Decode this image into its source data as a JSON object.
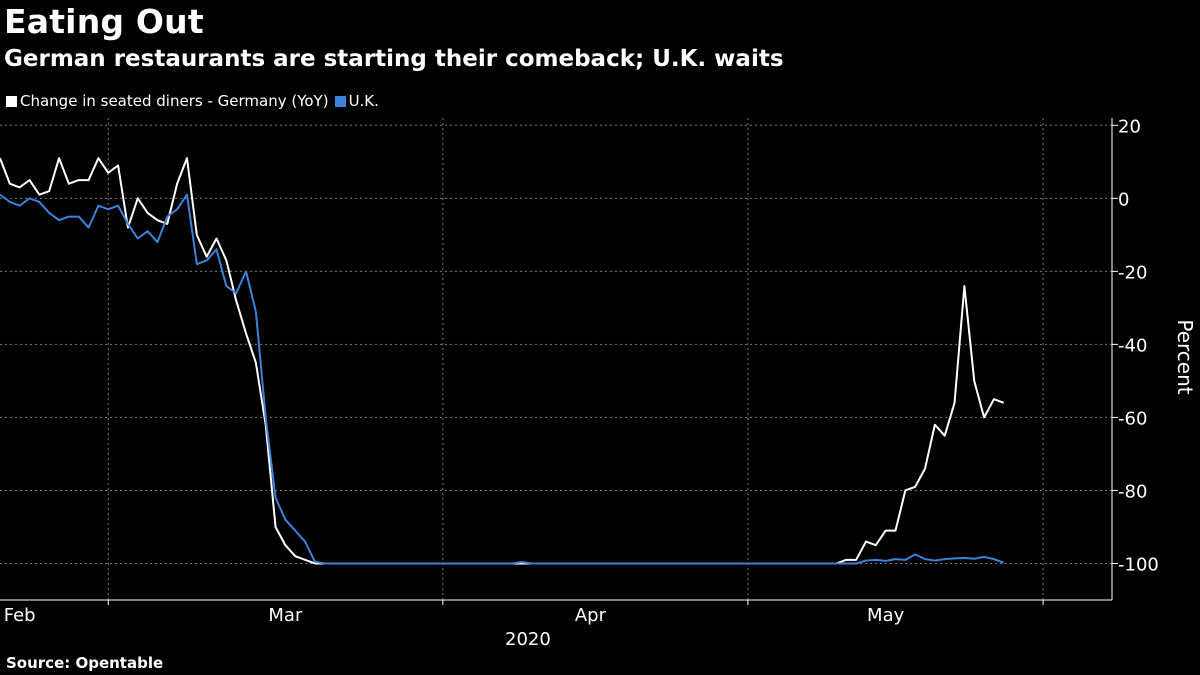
{
  "header": {
    "title": "Eating Out",
    "subtitle": "German restaurants are starting their comeback; U.K. waits"
  },
  "legend": [
    {
      "label": "Change in seated diners - Germany (YoY)",
      "color": "#ffffff"
    },
    {
      "label": "U.K.",
      "color": "#3b82d9"
    }
  ],
  "footer": {
    "source": "Source: Opentable"
  },
  "chart_data": {
    "type": "line",
    "title": "Eating Out",
    "subtitle": "German restaurants are starting their comeback; U.K. waits",
    "ylabel": "Percent",
    "ylim": [
      -110,
      22
    ],
    "yticks": [
      20,
      0,
      -20,
      -40,
      -60,
      -80,
      -100
    ],
    "ytick_labels": [
      "20",
      "0",
      "-20",
      "-40",
      "-60",
      "-80",
      "-100"
    ],
    "y_axis_position": "right",
    "xlim": [
      "2020-02-01",
      "2020-05-24"
    ],
    "month_labels": [
      {
        "label": "Feb",
        "date": "2020-02-03"
      },
      {
        "label": "Mar",
        "date": "2020-03-01"
      },
      {
        "label": "Apr",
        "date": "2020-04-01"
      },
      {
        "label": "May",
        "date": "2020-05-01"
      }
    ],
    "year_label": "2020",
    "gridlines": "dashed",
    "vertical_grid_dates": [
      "2020-02-12",
      "2020-03-17",
      "2020-04-17",
      "2020-05-17"
    ],
    "series": [
      {
        "name": "Change in seated diners - Germany (YoY)",
        "color": "#ffffff",
        "points": [
          [
            "2020-02-01",
            11
          ],
          [
            "2020-02-02",
            4
          ],
          [
            "2020-02-03",
            3
          ],
          [
            "2020-02-04",
            5
          ],
          [
            "2020-02-05",
            1
          ],
          [
            "2020-02-06",
            2
          ],
          [
            "2020-02-07",
            11
          ],
          [
            "2020-02-08",
            4
          ],
          [
            "2020-02-09",
            5
          ],
          [
            "2020-02-10",
            5
          ],
          [
            "2020-02-11",
            11
          ],
          [
            "2020-02-12",
            7
          ],
          [
            "2020-02-13",
            9
          ],
          [
            "2020-02-14",
            -8
          ],
          [
            "2020-02-15",
            0
          ],
          [
            "2020-02-16",
            -4
          ],
          [
            "2020-02-17",
            -6
          ],
          [
            "2020-02-18",
            -7
          ],
          [
            "2020-02-19",
            4
          ],
          [
            "2020-02-20",
            11
          ],
          [
            "2020-02-21",
            -10
          ],
          [
            "2020-02-22",
            -16
          ],
          [
            "2020-02-23",
            -11
          ],
          [
            "2020-02-24",
            -17
          ],
          [
            "2020-02-25",
            -28
          ],
          [
            "2020-02-26",
            -37
          ],
          [
            "2020-02-27",
            -45
          ],
          [
            "2020-02-28",
            -62
          ],
          [
            "2020-02-29",
            -90
          ],
          [
            "2020-03-01",
            -95
          ],
          [
            "2020-03-02",
            -98
          ],
          [
            "2020-03-03",
            -99
          ],
          [
            "2020-03-04",
            -100
          ],
          [
            "2020-04-26",
            -100
          ],
          [
            "2020-04-27",
            -99
          ],
          [
            "2020-04-28",
            -99
          ],
          [
            "2020-04-29",
            -94
          ],
          [
            "2020-04-30",
            -95
          ],
          [
            "2020-05-01",
            -91
          ],
          [
            "2020-05-02",
            -91
          ],
          [
            "2020-05-03",
            -80
          ],
          [
            "2020-05-04",
            -79
          ],
          [
            "2020-05-05",
            -74
          ],
          [
            "2020-05-06",
            -62
          ],
          [
            "2020-05-07",
            -65
          ],
          [
            "2020-05-08",
            -56
          ],
          [
            "2020-05-09",
            -24
          ],
          [
            "2020-05-10",
            -50
          ],
          [
            "2020-05-11",
            -60
          ],
          [
            "2020-05-12",
            -55
          ],
          [
            "2020-05-13",
            -56
          ]
        ]
      },
      {
        "name": "U.K.",
        "color": "#3b82d9",
        "points": [
          [
            "2020-02-01",
            1
          ],
          [
            "2020-02-02",
            -1
          ],
          [
            "2020-02-03",
            -2
          ],
          [
            "2020-02-04",
            0
          ],
          [
            "2020-02-05",
            -1
          ],
          [
            "2020-02-06",
            -4
          ],
          [
            "2020-02-07",
            -6
          ],
          [
            "2020-02-08",
            -5
          ],
          [
            "2020-02-09",
            -5
          ],
          [
            "2020-02-10",
            -8
          ],
          [
            "2020-02-11",
            -2
          ],
          [
            "2020-02-12",
            -3
          ],
          [
            "2020-02-13",
            -2
          ],
          [
            "2020-02-14",
            -7
          ],
          [
            "2020-02-15",
            -11
          ],
          [
            "2020-02-16",
            -9
          ],
          [
            "2020-02-17",
            -12
          ],
          [
            "2020-02-18",
            -5
          ],
          [
            "2020-02-19",
            -3
          ],
          [
            "2020-02-20",
            1
          ],
          [
            "2020-02-21",
            -18
          ],
          [
            "2020-02-22",
            -17
          ],
          [
            "2020-02-23",
            -14
          ],
          [
            "2020-02-24",
            -24
          ],
          [
            "2020-02-25",
            -26
          ],
          [
            "2020-02-26",
            -20
          ],
          [
            "2020-02-27",
            -31
          ],
          [
            "2020-02-28",
            -60
          ],
          [
            "2020-02-29",
            -82
          ],
          [
            "2020-03-01",
            -88
          ],
          [
            "2020-03-02",
            -91
          ],
          [
            "2020-03-03",
            -94
          ],
          [
            "2020-03-04",
            -99.5
          ],
          [
            "2020-03-05",
            -100
          ],
          [
            "2020-03-24",
            -100
          ],
          [
            "2020-03-25",
            -99.6
          ],
          [
            "2020-03-26",
            -100
          ],
          [
            "2020-04-28",
            -100
          ],
          [
            "2020-04-29",
            -99.2
          ],
          [
            "2020-04-30",
            -99
          ],
          [
            "2020-05-01",
            -99.3
          ],
          [
            "2020-05-02",
            -98.8
          ],
          [
            "2020-05-03",
            -99
          ],
          [
            "2020-05-04",
            -97.5
          ],
          [
            "2020-05-05",
            -98.8
          ],
          [
            "2020-05-06",
            -99.2
          ],
          [
            "2020-05-07",
            -98.8
          ],
          [
            "2020-05-08",
            -98.6
          ],
          [
            "2020-05-09",
            -98.5
          ],
          [
            "2020-05-10",
            -98.7
          ],
          [
            "2020-05-11",
            -98.2
          ],
          [
            "2020-05-12",
            -98.8
          ],
          [
            "2020-05-13",
            -99.8
          ]
        ]
      }
    ]
  }
}
